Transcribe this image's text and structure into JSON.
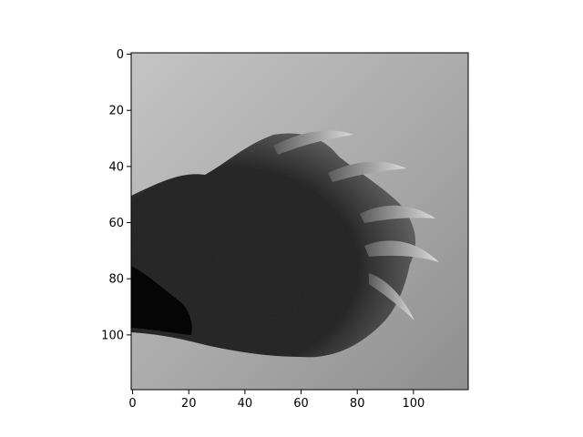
{
  "chart_data": {
    "type": "heatmap",
    "colormap": "gray",
    "image_shape": [
      120,
      120
    ],
    "xlim": [
      -0.5,
      119.5
    ],
    "ylim": [
      119.5,
      -0.5
    ],
    "x_ticks": [
      0,
      20,
      40,
      60,
      80,
      100
    ],
    "y_ticks": [
      0,
      20,
      40,
      60,
      80,
      100
    ],
    "x_tick_labels": [
      "0",
      "20",
      "40",
      "60",
      "80",
      "100"
    ],
    "y_tick_labels": [
      "0",
      "20",
      "40",
      "60",
      "80",
      "100"
    ],
    "grid": false,
    "title": "",
    "xlabel": "",
    "ylabel": "",
    "colors": {
      "background_light": "#c4c4c4",
      "background_mid": "#a9a9a9",
      "background_dark": "#8f8f8f",
      "subject_dark": "#2a2a2a",
      "subject_shadow": "#050505",
      "claw_light": "#dcdcdc",
      "claw_dark": "#5a5a5a"
    }
  }
}
